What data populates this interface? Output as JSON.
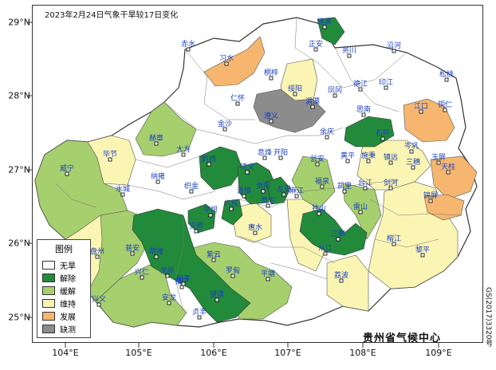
{
  "title": "2023年2月24日气象干旱较17日变化",
  "lat_labels": [
    "29°N",
    "28°N",
    "27°N",
    "26°N",
    "25°N"
  ],
  "lon_labels": [
    "104°E",
    "105°E",
    "106°E",
    "107°E",
    "108°E",
    "109°E"
  ],
  "credit": "贵州省气候中心",
  "map_code": "GS(2017)3320号",
  "legend": {
    "title": "图例",
    "items": [
      {
        "label": "无旱",
        "color": "#ffffff"
      },
      {
        "label": "解除",
        "color": "#228b3b"
      },
      {
        "label": "缓解",
        "color": "#a6cf6e"
      },
      {
        "label": "维持",
        "color": "#fbf5b4"
      },
      {
        "label": "发展",
        "color": "#f6b66f"
      },
      {
        "label": "缺测",
        "color": "#8c8c8c"
      }
    ]
  },
  "cities": [
    "道真",
    "赤水",
    "习水",
    "正安",
    "务川",
    "沿河",
    "桐梓",
    "绥阳",
    "凤冈",
    "德江",
    "印江",
    "松桃",
    "仁怀",
    "遵义",
    "湄潭",
    "思南",
    "江口",
    "铜仁",
    "金沙",
    "余庆",
    "石阡",
    "岑巩",
    "玉屏",
    "毕节",
    "大方",
    "黔西",
    "息烽",
    "开阳",
    "瓮安",
    "黄平",
    "施秉",
    "镇远",
    "三穗",
    "天柱",
    "威宁",
    "赫章",
    "织金",
    "修文",
    "清镇",
    "贵阳",
    "龙里",
    "福泉",
    "凯里",
    "台江",
    "剑河",
    "锦屏",
    "水城",
    "纳雍",
    "六枝",
    "平坝",
    "安顺",
    "贵定",
    "麻江",
    "雷山",
    "榕江",
    "黎平",
    "盘州",
    "普安",
    "晴隆",
    "关岭",
    "镇宁",
    "紫云",
    "惠水",
    "平塘",
    "独山",
    "三都",
    "从江",
    "兴仁",
    "兴义",
    "安龙",
    "贞丰",
    "望谟",
    "册亨",
    "罗甸",
    "荔波"
  ]
}
